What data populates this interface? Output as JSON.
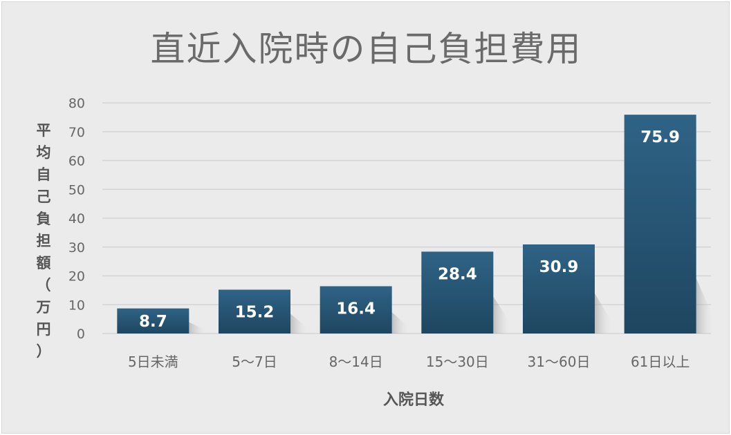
{
  "chart_data": {
    "type": "bar",
    "title": "直近入院時の自己負担費用",
    "xlabel": "入院日数",
    "ylabel": "平均自己負担額（万円）",
    "categories": [
      "5日未満",
      "5～7日",
      "8～14日",
      "15～30日",
      "31～60日",
      "61日以上"
    ],
    "values": [
      8.7,
      15.2,
      16.4,
      28.4,
      30.9,
      75.9
    ],
    "ylim": [
      0,
      80
    ],
    "yticks": [
      0,
      10,
      20,
      30,
      40,
      50,
      60,
      70,
      80
    ],
    "grid": true,
    "legend": "none",
    "colors": {
      "bar_top": "#2f6386",
      "bar_bottom": "#1e4660",
      "grid": "#d4d4d4",
      "background": "#ebebeb"
    }
  }
}
